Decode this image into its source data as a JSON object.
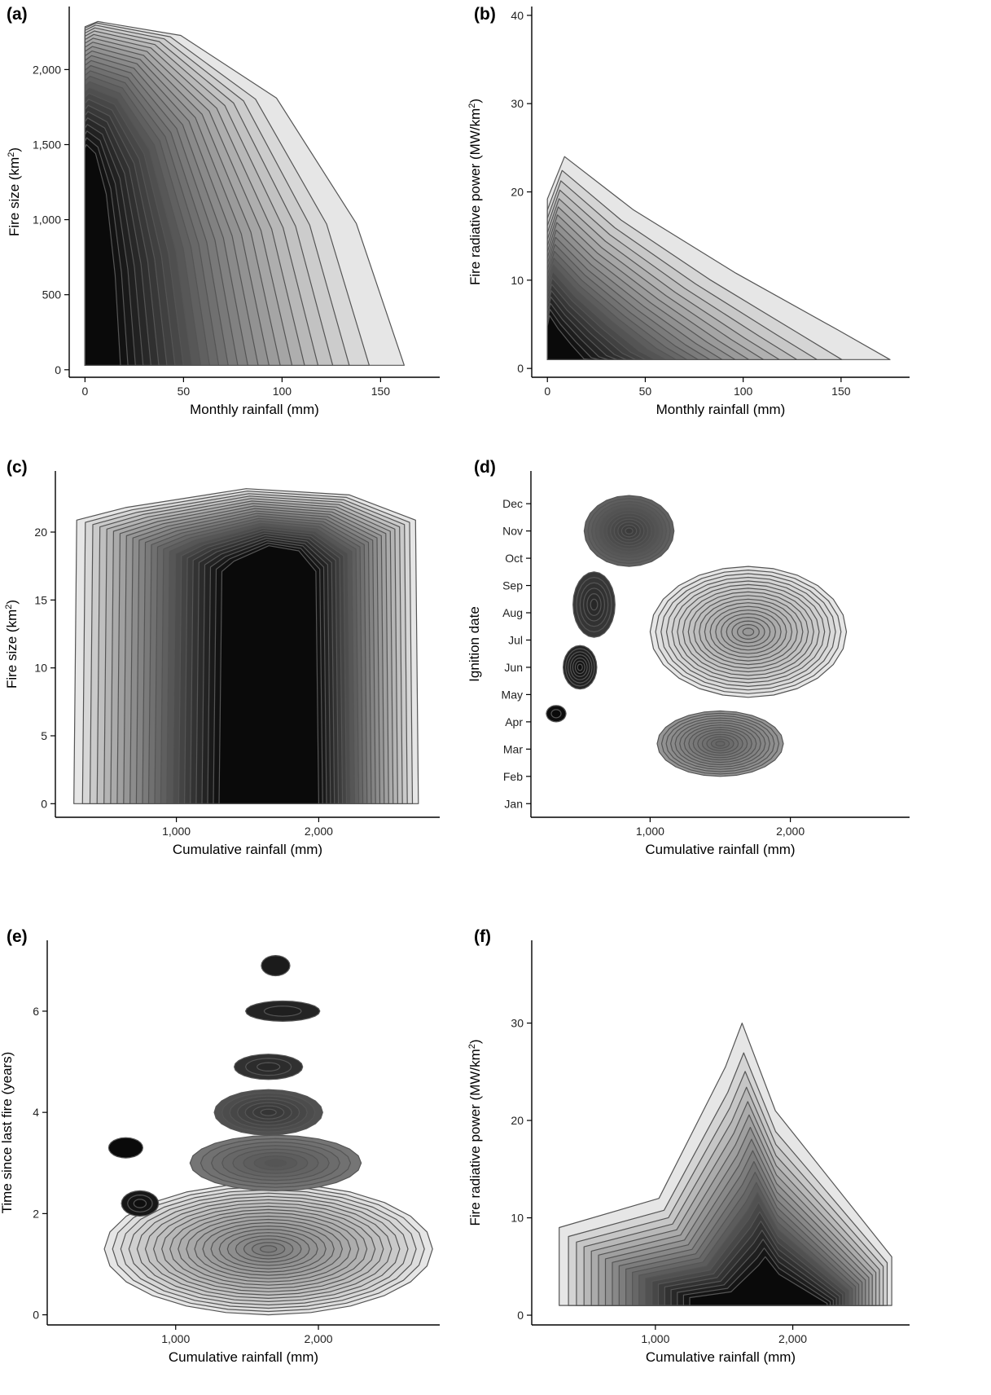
{
  "colors": {
    "axis": "#000000",
    "contour_line": "#555555",
    "fill_light": "#e6e6e6",
    "fill_dark": "#0a0a0a"
  },
  "chart_data": [
    {
      "id": "a",
      "type": "contour",
      "panel_label": "(a)",
      "xlabel": "Monthly rainfall (mm)",
      "ylabel": "Fire size (km2)",
      "ylabel_main": "Fire size (km",
      "ylabel_sup": "2",
      "ylabel_end": ")",
      "xlim": [
        -8,
        180
      ],
      "ylim": [
        -50,
        2420
      ],
      "xticks": [
        0,
        50,
        100,
        150
      ],
      "xtick_labels": [
        "0",
        "50",
        "100",
        "150"
      ],
      "yticks": [
        0,
        500,
        1000,
        1500,
        2000
      ],
      "ytick_labels": [
        "0",
        "500",
        "1,000",
        "1,500",
        "2,000"
      ],
      "density_peak": {
        "x": 5,
        "y": 500
      },
      "outer_extent": {
        "xmax": 162,
        "ymax": 2320
      }
    },
    {
      "id": "b",
      "type": "contour",
      "panel_label": "(b)",
      "xlabel": "Monthly rainfall (mm)",
      "ylabel": "Fire radiative power (MW/km2)",
      "ylabel_main": "Fire radiative power (MW/km",
      "ylabel_sup": "2",
      "ylabel_end": ")",
      "xlim": [
        -8,
        185
      ],
      "ylim": [
        -1,
        41
      ],
      "xticks": [
        0,
        50,
        100,
        150
      ],
      "xtick_labels": [
        "0",
        "50",
        "100",
        "150"
      ],
      "yticks": [
        0,
        10,
        20,
        30,
        40
      ],
      "ytick_labels": [
        "0",
        "10",
        "20",
        "30",
        "40"
      ],
      "density_peak": {
        "x": 8,
        "y": 3
      }
    },
    {
      "id": "c",
      "type": "contour",
      "panel_label": "(c)",
      "xlabel": "Cumulative rainfall (mm)",
      "ylabel": "Fire size (km2)",
      "ylabel_main": "Fire size (km",
      "ylabel_sup": "2",
      "ylabel_end": ")",
      "xlim": [
        150,
        2850
      ],
      "ylim": [
        -1,
        24.5
      ],
      "xticks": [
        1000,
        2000
      ],
      "xtick_labels": [
        "1,000",
        "2,000"
      ],
      "yticks": [
        0,
        5,
        10,
        15,
        20
      ],
      "ytick_labels": [
        "0",
        "5",
        "10",
        "15",
        "20"
      ],
      "density_peak": {
        "x": 1650,
        "y": 5
      },
      "outer_extent": {
        "xmin": 280,
        "xmax": 2700,
        "ymax": 23.2
      }
    },
    {
      "id": "d",
      "type": "contour",
      "panel_label": "(d)",
      "xlabel": "Cumulative rainfall (mm)",
      "ylabel": "Ignition date",
      "ylabel_main": "Ignition date",
      "ylabel_sup": "",
      "ylabel_end": "",
      "xlim": [
        150,
        2850
      ],
      "ylim": [
        0.5,
        13.2
      ],
      "xticks": [
        1000,
        2000
      ],
      "xtick_labels": [
        "1,000",
        "2,000"
      ],
      "yticks": [
        1,
        2,
        3,
        4,
        5,
        6,
        7,
        8,
        9,
        10,
        11,
        12
      ],
      "ytick_labels": [
        "Jan",
        "Feb",
        "Mar",
        "Apr",
        "May",
        "Jun",
        "Jul",
        "Aug",
        "Sep",
        "Oct",
        "Nov",
        "Dec"
      ],
      "density_peaks": [
        {
          "x": 1700,
          "y": 7.3
        },
        {
          "x": 1500,
          "y": 3.2
        },
        {
          "x": 850,
          "y": 11
        }
      ]
    },
    {
      "id": "e",
      "type": "contour",
      "panel_label": "(e)",
      "xlabel": "Cumulative rainfall (mm)",
      "ylabel": "Time since last fire (years)",
      "ylabel_main": "Time since last fire (years)",
      "ylabel_sup": "",
      "ylabel_end": "",
      "xlim": [
        100,
        2850
      ],
      "ylim": [
        -0.2,
        7.4
      ],
      "xticks": [
        1000,
        2000
      ],
      "xtick_labels": [
        "1,000",
        "2,000"
      ],
      "yticks": [
        0,
        2,
        4,
        6
      ],
      "ytick_labels": [
        "0",
        "2",
        "4",
        "6"
      ],
      "density_peaks": [
        {
          "x": 1800,
          "y": 1
        },
        {
          "x": 1650,
          "y": 2
        }
      ]
    },
    {
      "id": "f",
      "type": "contour",
      "panel_label": "(f)",
      "xlabel": "Cumulative rainfall (mm)",
      "ylabel": "Fire radiative power (MW/km2)",
      "ylabel_main": "Fire radiative power (MW/km",
      "ylabel_sup": "2",
      "ylabel_end": ")",
      "xlim": [
        100,
        2850
      ],
      "ylim": [
        -1,
        38.5
      ],
      "xticks": [
        1000,
        2000
      ],
      "xtick_labels": [
        "1,000",
        "2,000"
      ],
      "yticks": [
        0,
        10,
        20,
        30
      ],
      "ytick_labels": [
        "0",
        "10",
        "20",
        "30"
      ],
      "density_peak": {
        "x": 1700,
        "y": 3
      }
    }
  ]
}
